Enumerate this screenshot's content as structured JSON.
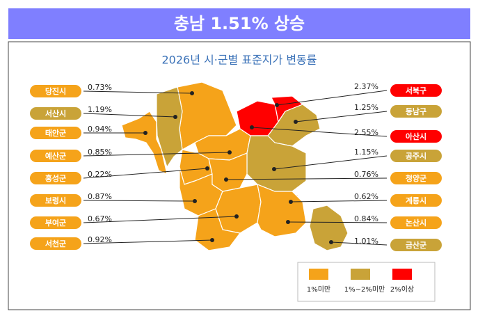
{
  "title": "충남 1.51% 상승",
  "subtitle": "2026년 시·군별 표준지가 변동률",
  "regions": [
    {
      "name": "당진시",
      "rate": "0.73%",
      "color": "#f5a31a"
    },
    {
      "name": "서산시",
      "rate": "1.19%",
      "color": "#c9a338"
    },
    {
      "name": "태안군",
      "rate": "0.94%",
      "color": "#f5a31a"
    },
    {
      "name": "예산군",
      "rate": "0.85%",
      "color": "#f5a31a"
    },
    {
      "name": "홍성군",
      "rate": "0.22%",
      "color": "#f5a31a"
    },
    {
      "name": "보령시",
      "rate": "0.87%",
      "color": "#f5a31a"
    },
    {
      "name": "부여군",
      "rate": "0.67%",
      "color": "#f5a31a"
    },
    {
      "name": "서천군",
      "rate": "0.92%",
      "color": "#f5a31a"
    },
    {
      "name": "서북구",
      "rate": "2.37%",
      "color": "#ff0000"
    },
    {
      "name": "동남구",
      "rate": "1.25%",
      "color": "#c9a338"
    },
    {
      "name": "아산시",
      "rate": "2.55%",
      "color": "#ff0000"
    },
    {
      "name": "공주시",
      "rate": "1.15%",
      "color": "#c9a338"
    },
    {
      "name": "청양군",
      "rate": "0.76%",
      "color": "#f5a31a"
    },
    {
      "name": "계룡시",
      "rate": "0.62%",
      "color": "#f5a31a"
    },
    {
      "name": "논산시",
      "rate": "0.84%",
      "color": "#f5a31a"
    },
    {
      "name": "금산군",
      "rate": "1.01%",
      "color": "#c9a338"
    }
  ],
  "legend": [
    {
      "label": "1%미만",
      "color": "#f5a31a"
    },
    {
      "label": "1%~2%미만",
      "color": "#c9a338"
    },
    {
      "label": "2%이상",
      "color": "#ff0000"
    }
  ]
}
